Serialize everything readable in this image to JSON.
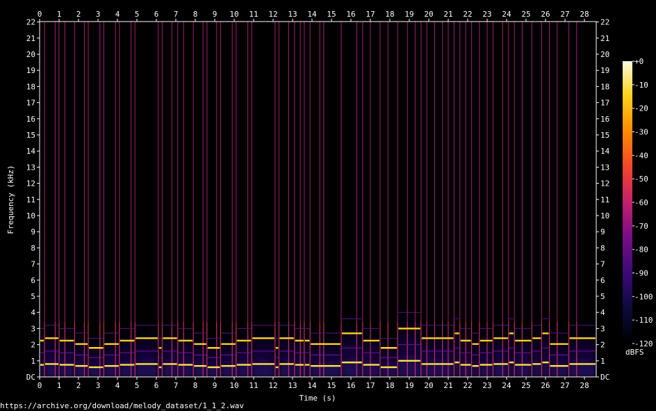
{
  "source_url": "https://archive.org/download/melody_dataset/1_1_2.wav",
  "colors": {
    "background": "#000000",
    "text": "#ffffff",
    "frame": "#ffffff",
    "colormap": [
      "#000000",
      "#0b0a3a",
      "#3b0a78",
      "#7a0d86",
      "#c4206d",
      "#f2432c",
      "#ff8a00",
      "#ffd21a",
      "#fffbe0"
    ]
  },
  "chart_data": {
    "type": "heatmap",
    "title": "",
    "xlabel": "Time (s)",
    "ylabel": "Frequency (kHz)",
    "xlim": [
      0,
      28.6
    ],
    "ylim": [
      0,
      22
    ],
    "x_ticks": [
      "0",
      "1",
      "2",
      "3",
      "4",
      "5",
      "6",
      "7",
      "8",
      "9",
      "10",
      "11",
      "12",
      "13",
      "14",
      "15",
      "16",
      "17",
      "18",
      "19",
      "20",
      "21",
      "22",
      "23",
      "24",
      "25",
      "26",
      "27",
      "28"
    ],
    "y_ticks": [
      "DC",
      "1",
      "2",
      "3",
      "4",
      "5",
      "6",
      "7",
      "8",
      "9",
      "10",
      "11",
      "12",
      "13",
      "14",
      "15",
      "16",
      "17",
      "18",
      "19",
      "20",
      "21",
      "22"
    ],
    "colorbar": {
      "label": "dBFS",
      "range": [
        -120,
        0
      ],
      "ticks": [
        "+0",
        "-10",
        "-20",
        "-30",
        "-40",
        "-50",
        "-60",
        "-70",
        "-80",
        "-90",
        "-100",
        "-110",
        "-120"
      ]
    },
    "notes": [
      {
        "start": 0.0,
        "end": 0.25,
        "f0": 0.75
      },
      {
        "start": 0.25,
        "end": 1.0,
        "f0": 0.8
      },
      {
        "start": 1.0,
        "end": 1.8,
        "f0": 0.75
      },
      {
        "start": 1.8,
        "end": 2.5,
        "f0": 0.68
      },
      {
        "start": 2.5,
        "end": 3.3,
        "f0": 0.6
      },
      {
        "start": 3.3,
        "end": 4.1,
        "f0": 0.68
      },
      {
        "start": 4.1,
        "end": 4.9,
        "f0": 0.75
      },
      {
        "start": 4.9,
        "end": 6.1,
        "f0": 0.8
      },
      {
        "start": 6.1,
        "end": 6.3,
        "f0": 0.6
      },
      {
        "start": 6.3,
        "end": 7.1,
        "f0": 0.8
      },
      {
        "start": 7.1,
        "end": 7.9,
        "f0": 0.75
      },
      {
        "start": 7.9,
        "end": 8.6,
        "f0": 0.68
      },
      {
        "start": 8.6,
        "end": 9.3,
        "f0": 0.6
      },
      {
        "start": 9.3,
        "end": 10.1,
        "f0": 0.68
      },
      {
        "start": 10.1,
        "end": 10.9,
        "f0": 0.75
      },
      {
        "start": 10.9,
        "end": 12.1,
        "f0": 0.8
      },
      {
        "start": 12.1,
        "end": 12.3,
        "f0": 0.6
      },
      {
        "start": 12.3,
        "end": 13.1,
        "f0": 0.8
      },
      {
        "start": 13.1,
        "end": 13.6,
        "f0": 0.75
      },
      {
        "start": 13.6,
        "end": 13.9,
        "f0": 0.75
      },
      {
        "start": 13.9,
        "end": 15.5,
        "f0": 0.68
      },
      {
        "start": 15.5,
        "end": 16.6,
        "f0": 0.9
      },
      {
        "start": 16.6,
        "end": 17.5,
        "f0": 0.75
      },
      {
        "start": 17.5,
        "end": 18.4,
        "f0": 0.6
      },
      {
        "start": 18.4,
        "end": 19.6,
        "f0": 1.0
      },
      {
        "start": 19.6,
        "end": 21.3,
        "f0": 0.8
      },
      {
        "start": 21.3,
        "end": 21.6,
        "f0": 0.9
      },
      {
        "start": 21.6,
        "end": 22.2,
        "f0": 0.75
      },
      {
        "start": 22.2,
        "end": 22.6,
        "f0": 0.68
      },
      {
        "start": 22.6,
        "end": 23.3,
        "f0": 0.75
      },
      {
        "start": 23.3,
        "end": 24.1,
        "f0": 0.8
      },
      {
        "start": 24.1,
        "end": 24.4,
        "f0": 0.9
      },
      {
        "start": 24.4,
        "end": 25.3,
        "f0": 0.75
      },
      {
        "start": 25.3,
        "end": 25.8,
        "f0": 0.8
      },
      {
        "start": 25.8,
        "end": 26.2,
        "f0": 0.9
      },
      {
        "start": 26.2,
        "end": 27.2,
        "f0": 0.68
      },
      {
        "start": 27.2,
        "end": 28.6,
        "f0": 0.8
      }
    ],
    "onsets": [
      0.25,
      0.8,
      1.0,
      1.3,
      1.8,
      2.3,
      2.5,
      3.1,
      3.3,
      3.9,
      4.1,
      4.7,
      4.9,
      6.1,
      6.3,
      6.8,
      7.1,
      7.4,
      7.9,
      8.4,
      8.6,
      9.1,
      9.3,
      9.9,
      10.1,
      10.7,
      10.9,
      12.1,
      12.3,
      12.8,
      13.1,
      13.4,
      13.6,
      13.9,
      14.4,
      14.6,
      15.5,
      16.3,
      16.6,
      17.0,
      17.5,
      17.9,
      18.4,
      18.9,
      19.3,
      19.6,
      19.9,
      20.3,
      20.7,
      21.0,
      21.3,
      21.6,
      21.9,
      22.2,
      22.6,
      23.0,
      23.3,
      23.8,
      24.1,
      24.4,
      24.8,
      25.3,
      25.8,
      26.2,
      26.6,
      27.2,
      27.6
    ]
  }
}
